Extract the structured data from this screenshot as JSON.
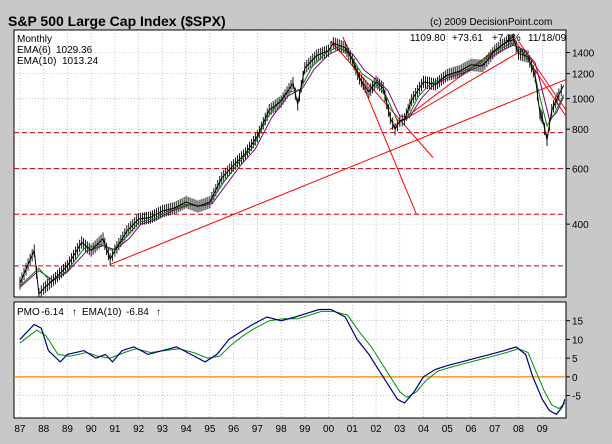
{
  "chart_data": {
    "type": "line",
    "title": "S&P 500 Large Cap Index ($SPX)",
    "copyright": "(c) 2009 DecisionPoint.com",
    "period": "Monthly",
    "quote": {
      "last": "1109.80",
      "change": "+73.61",
      "pct": "+7.1%",
      "date": "11/18/09"
    },
    "colors": {
      "background": "#c8c8c8",
      "panel": "#ffffff",
      "grid": "#a0a0a0",
      "price": "#000000",
      "ema6": "#008000",
      "ema10": "#800080",
      "pmo": "#000080",
      "pmo_signal": "#009000",
      "zero": "#ff8000",
      "trendline": "#ff0000",
      "support": "#c80000"
    },
    "x_tick_labels": [
      "87",
      "88",
      "89",
      "90",
      "91",
      "92",
      "93",
      "94",
      "95",
      "96",
      "97",
      "98",
      "99",
      "00",
      "01",
      "02",
      "03",
      "04",
      "05",
      "06",
      "07",
      "08",
      "09"
    ],
    "x_range": [
      1986.75,
      2010.0
    ],
    "price_panel": {
      "scale": "log",
      "ylim": [
        235,
        1650
      ],
      "yticks": [
        400,
        600,
        800,
        1000,
        1200,
        1400
      ],
      "legend": [
        {
          "label": "EMA(6)",
          "value": "1029.36"
        },
        {
          "label": "EMA(10)",
          "value": "1013.24"
        }
      ],
      "price_points": [
        [
          1987.0,
          260
        ],
        [
          1987.6,
          330
        ],
        [
          1987.8,
          240
        ],
        [
          1988.0,
          250
        ],
        [
          1988.5,
          270
        ],
        [
          1989.0,
          295
        ],
        [
          1989.6,
          350
        ],
        [
          1990.0,
          330
        ],
        [
          1990.5,
          360
        ],
        [
          1990.8,
          310
        ],
        [
          1991.0,
          330
        ],
        [
          1991.5,
          380
        ],
        [
          1992.0,
          415
        ],
        [
          1992.5,
          420
        ],
        [
          1993.0,
          440
        ],
        [
          1993.5,
          450
        ],
        [
          1994.0,
          470
        ],
        [
          1994.5,
          455
        ],
        [
          1995.0,
          470
        ],
        [
          1995.5,
          560
        ],
        [
          1996.0,
          615
        ],
        [
          1996.5,
          670
        ],
        [
          1997.0,
          760
        ],
        [
          1997.5,
          920
        ],
        [
          1998.0,
          980
        ],
        [
          1998.5,
          1120
        ],
        [
          1998.7,
          960
        ],
        [
          1999.0,
          1250
        ],
        [
          1999.5,
          1370
        ],
        [
          2000.0,
          1420
        ],
        [
          2000.2,
          1500
        ],
        [
          2000.7,
          1450
        ],
        [
          2001.0,
          1330
        ],
        [
          2001.3,
          1160
        ],
        [
          2001.7,
          1050
        ],
        [
          2002.0,
          1130
        ],
        [
          2002.3,
          1080
        ],
        [
          2002.6,
          870
        ],
        [
          2002.8,
          800
        ],
        [
          2003.0,
          850
        ],
        [
          2003.2,
          860
        ],
        [
          2003.5,
          990
        ],
        [
          2004.0,
          1130
        ],
        [
          2004.5,
          1110
        ],
        [
          2005.0,
          1190
        ],
        [
          2005.5,
          1220
        ],
        [
          2006.0,
          1280
        ],
        [
          2006.5,
          1270
        ],
        [
          2007.0,
          1420
        ],
        [
          2007.5,
          1510
        ],
        [
          2007.8,
          1540
        ],
        [
          2008.0,
          1390
        ],
        [
          2008.4,
          1360
        ],
        [
          2008.7,
          1180
        ],
        [
          2008.9,
          900
        ],
        [
          2009.0,
          870
        ],
        [
          2009.2,
          740
        ],
        [
          2009.4,
          920
        ],
        [
          2009.7,
          1030
        ],
        [
          2009.9,
          1100
        ]
      ],
      "ema6_points": [
        [
          1987.0,
          255
        ],
        [
          1987.8,
          290
        ],
        [
          1988.3,
          262
        ],
        [
          1989.0,
          285
        ],
        [
          1989.7,
          335
        ],
        [
          1990.4,
          345
        ],
        [
          1990.9,
          330
        ],
        [
          1991.5,
          365
        ],
        [
          1992.0,
          405
        ],
        [
          1992.7,
          418
        ],
        [
          1993.3,
          442
        ],
        [
          1994.0,
          462
        ],
        [
          1994.6,
          458
        ],
        [
          1995.0,
          468
        ],
        [
          1995.6,
          545
        ],
        [
          1996.2,
          625
        ],
        [
          1996.8,
          700
        ],
        [
          1997.5,
          890
        ],
        [
          1998.2,
          1040
        ],
        [
          1998.8,
          1070
        ],
        [
          1999.3,
          1260
        ],
        [
          1999.9,
          1400
        ],
        [
          2000.4,
          1460
        ],
        [
          2000.9,
          1380
        ],
        [
          2001.4,
          1200
        ],
        [
          2001.9,
          1130
        ],
        [
          2002.4,
          1030
        ],
        [
          2002.9,
          850
        ],
        [
          2003.3,
          860
        ],
        [
          2003.8,
          1020
        ],
        [
          2004.3,
          1115
        ],
        [
          2005.0,
          1180
        ],
        [
          2005.7,
          1225
        ],
        [
          2006.3,
          1280
        ],
        [
          2007.0,
          1410
        ],
        [
          2007.7,
          1500
        ],
        [
          2008.1,
          1420
        ],
        [
          2008.6,
          1270
        ],
        [
          2008.9,
          1010
        ],
        [
          2009.2,
          820
        ],
        [
          2009.5,
          890
        ],
        [
          2009.9,
          1029
        ]
      ],
      "ema10_points": [
        [
          1987.0,
          252
        ],
        [
          1987.8,
          285
        ],
        [
          1988.4,
          265
        ],
        [
          1989.0,
          282
        ],
        [
          1989.8,
          328
        ],
        [
          1990.5,
          342
        ],
        [
          1991.0,
          332
        ],
        [
          1991.6,
          360
        ],
        [
          1992.1,
          400
        ],
        [
          1992.8,
          415
        ],
        [
          1993.4,
          440
        ],
        [
          1994.1,
          460
        ],
        [
          1994.7,
          457
        ],
        [
          1995.1,
          465
        ],
        [
          1995.7,
          535
        ],
        [
          1996.3,
          615
        ],
        [
          1996.9,
          690
        ],
        [
          1997.6,
          870
        ],
        [
          1998.3,
          1020
        ],
        [
          1998.9,
          1080
        ],
        [
          1999.4,
          1240
        ],
        [
          2000.0,
          1380
        ],
        [
          2000.5,
          1440
        ],
        [
          2001.0,
          1390
        ],
        [
          2001.5,
          1230
        ],
        [
          2002.0,
          1150
        ],
        [
          2002.5,
          1060
        ],
        [
          2003.0,
          880
        ],
        [
          2003.4,
          870
        ],
        [
          2003.9,
          1000
        ],
        [
          2004.4,
          1100
        ],
        [
          2005.1,
          1170
        ],
        [
          2005.8,
          1215
        ],
        [
          2006.4,
          1270
        ],
        [
          2007.1,
          1395
        ],
        [
          2007.8,
          1480
        ],
        [
          2008.2,
          1430
        ],
        [
          2008.7,
          1300
        ],
        [
          2009.0,
          1060
        ],
        [
          2009.3,
          860
        ],
        [
          2009.6,
          900
        ],
        [
          2009.9,
          1013
        ]
      ],
      "horizontal_levels": [
        295,
        430,
        600,
        780
      ],
      "trendlines": [
        {
          "from": [
            1990.8,
            298
          ],
          "to": [
            2010.0,
            1150
          ]
        },
        {
          "from": [
            2000.6,
            1570
          ],
          "to": [
            2003.7,
            430
          ]
        },
        {
          "from": [
            2000.1,
            1520
          ],
          "to": [
            2004.4,
            650
          ]
        },
        {
          "from": [
            2002.6,
            800
          ],
          "to": [
            2007.8,
            1580
          ]
        },
        {
          "from": [
            2003.1,
            850
          ],
          "to": [
            2008.2,
            1430
          ]
        },
        {
          "from": [
            2007.7,
            1590
          ],
          "to": [
            2010.0,
            880
          ]
        },
        {
          "from": [
            2008.0,
            1520
          ],
          "to": [
            2010.0,
            920
          ]
        }
      ]
    },
    "pmo_panel": {
      "ylim": [
        -11,
        20
      ],
      "yticks": [
        -5,
        0,
        5,
        10,
        15
      ],
      "zero_line": 0,
      "legend": [
        {
          "label": "PMO",
          "value": "-6.14"
        },
        {
          "label": "EMA(10)",
          "value": "-6.84"
        }
      ],
      "pmo_points": [
        [
          1987.0,
          10
        ],
        [
          1987.6,
          14
        ],
        [
          1987.9,
          13
        ],
        [
          1988.2,
          7
        ],
        [
          1988.7,
          4
        ],
        [
          1989.0,
          6
        ],
        [
          1989.7,
          7
        ],
        [
          1990.2,
          5
        ],
        [
          1990.6,
          6
        ],
        [
          1990.9,
          4
        ],
        [
          1991.3,
          7
        ],
        [
          1991.8,
          8
        ],
        [
          1992.4,
          6
        ],
        [
          1993.0,
          7
        ],
        [
          1993.6,
          8
        ],
        [
          1994.2,
          6
        ],
        [
          1994.8,
          4
        ],
        [
          1995.3,
          6
        ],
        [
          1995.8,
          10
        ],
        [
          1996.3,
          12
        ],
        [
          1996.8,
          14
        ],
        [
          1997.4,
          16
        ],
        [
          1998.0,
          15
        ],
        [
          1998.6,
          16
        ],
        [
          1999.1,
          17
        ],
        [
          1999.6,
          18
        ],
        [
          2000.1,
          18
        ],
        [
          2000.7,
          16
        ],
        [
          2001.2,
          10
        ],
        [
          2001.7,
          6
        ],
        [
          2002.1,
          2
        ],
        [
          2002.5,
          -2
        ],
        [
          2002.9,
          -6
        ],
        [
          2003.2,
          -7
        ],
        [
          2003.6,
          -4
        ],
        [
          2004.0,
          0
        ],
        [
          2004.5,
          2
        ],
        [
          2005.0,
          3
        ],
        [
          2005.6,
          4
        ],
        [
          2006.2,
          5
        ],
        [
          2006.8,
          6
        ],
        [
          2007.4,
          7
        ],
        [
          2007.9,
          8
        ],
        [
          2008.3,
          6
        ],
        [
          2008.6,
          0
        ],
        [
          2009.0,
          -6
        ],
        [
          2009.3,
          -9
        ],
        [
          2009.6,
          -10
        ],
        [
          2009.85,
          -8
        ],
        [
          2009.95,
          -6
        ]
      ],
      "signal_points": [
        [
          1987.0,
          9
        ],
        [
          1987.7,
          12.5
        ],
        [
          1988.1,
          11
        ],
        [
          1988.6,
          6
        ],
        [
          1989.1,
          5.5
        ],
        [
          1989.8,
          6.5
        ],
        [
          1990.3,
          5.5
        ],
        [
          1990.8,
          5
        ],
        [
          1991.4,
          6.5
        ],
        [
          1991.9,
          7.5
        ],
        [
          1992.5,
          6.5
        ],
        [
          1993.1,
          7
        ],
        [
          1993.7,
          7.5
        ],
        [
          1994.3,
          6.5
        ],
        [
          1994.9,
          5
        ],
        [
          1995.4,
          5.5
        ],
        [
          1995.9,
          8.5
        ],
        [
          1996.4,
          11
        ],
        [
          1996.9,
          13
        ],
        [
          1997.5,
          15
        ],
        [
          1998.1,
          15.5
        ],
        [
          1998.7,
          15.5
        ],
        [
          1999.2,
          16.5
        ],
        [
          1999.7,
          17.5
        ],
        [
          2000.2,
          17.5
        ],
        [
          2000.8,
          16.5
        ],
        [
          2001.3,
          12
        ],
        [
          2001.8,
          8
        ],
        [
          2002.2,
          4
        ],
        [
          2002.6,
          0
        ],
        [
          2003.0,
          -4
        ],
        [
          2003.3,
          -5.5
        ],
        [
          2003.7,
          -4
        ],
        [
          2004.1,
          -1
        ],
        [
          2004.6,
          1.5
        ],
        [
          2005.1,
          2.5
        ],
        [
          2005.7,
          3.5
        ],
        [
          2006.3,
          4.5
        ],
        [
          2006.9,
          5.5
        ],
        [
          2007.5,
          6.5
        ],
        [
          2008.0,
          7.5
        ],
        [
          2008.4,
          6.5
        ],
        [
          2008.7,
          2
        ],
        [
          2009.1,
          -4
        ],
        [
          2009.4,
          -7.5
        ],
        [
          2009.7,
          -8.5
        ],
        [
          2009.95,
          -7
        ]
      ]
    }
  }
}
